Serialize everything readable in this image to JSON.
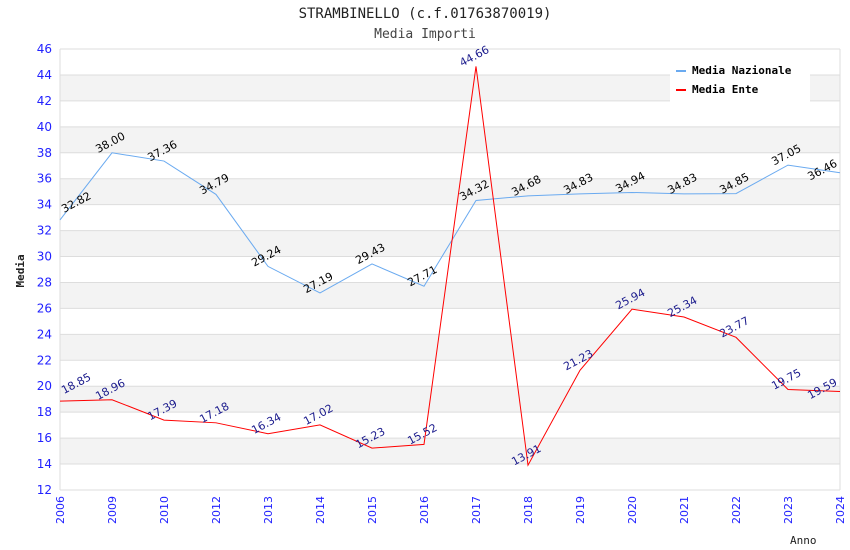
{
  "title": "STRAMBINELLO (c.f.01763870019)",
  "subtitle": "Media Importi",
  "chart_data": {
    "type": "line",
    "title": "STRAMBINELLO (c.f.01763870019)",
    "subtitle": "Media Importi",
    "xlabel": "Anno",
    "ylabel": "Media",
    "ylim": [
      12,
      46
    ],
    "yticks": [
      12,
      14,
      16,
      18,
      20,
      22,
      24,
      26,
      28,
      30,
      32,
      34,
      36,
      38,
      40,
      42,
      44,
      46
    ],
    "categories": [
      "2006",
      "2009",
      "2010",
      "2012",
      "2013",
      "2014",
      "2015",
      "2016",
      "2017",
      "2018",
      "2019",
      "2020",
      "2021",
      "2022",
      "2023",
      "2024"
    ],
    "series": [
      {
        "name": "Media Nazionale",
        "color": "#6aaaf0",
        "label_color": "#000000",
        "values": [
          32.82,
          38.0,
          37.36,
          34.79,
          29.24,
          27.19,
          29.43,
          27.71,
          34.32,
          34.68,
          34.83,
          34.94,
          34.83,
          34.85,
          37.05,
          36.46
        ]
      },
      {
        "name": "Media Ente",
        "color": "#ff0000",
        "label_color": "#1a1a8c",
        "values": [
          18.85,
          18.96,
          17.39,
          17.18,
          16.34,
          17.02,
          15.23,
          15.52,
          44.66,
          13.91,
          21.23,
          25.94,
          25.34,
          23.77,
          19.75,
          19.59
        ]
      }
    ],
    "legend": "top-right",
    "grid": true
  }
}
